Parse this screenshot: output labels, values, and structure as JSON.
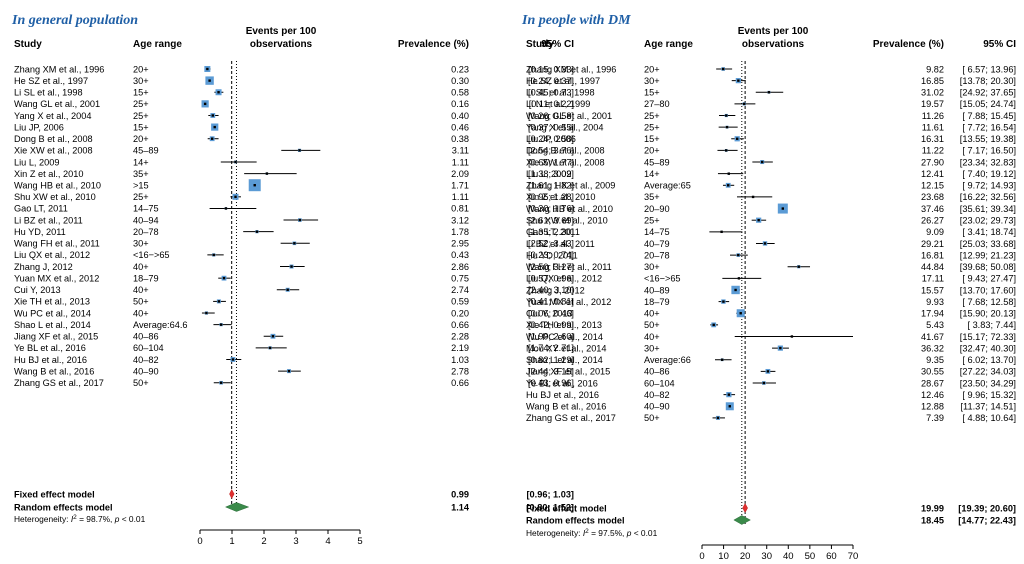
{
  "colors": {
    "title": "#1f5fa6",
    "box": "#5b9bd5",
    "diamond": "#3a8a4a",
    "fixed": "#e03030"
  },
  "chart_data": [
    {
      "type": "forest",
      "title": "In general population",
      "headers": {
        "study": "Study",
        "age": "Age range",
        "events1": "Events per 100",
        "events2": "observations",
        "prevalence": "Prevalence (%)",
        "ci": "95% CI"
      },
      "xlim": [
        0,
        5
      ],
      "ticks": [
        0,
        1,
        2,
        3,
        4,
        5
      ],
      "fixed_line": 0.99,
      "random_line": 1.14,
      "studies": [
        {
          "study": "Zhang XM et al., 1996",
          "age": "20+",
          "est": 0.23,
          "lo": 0.15,
          "hi": 0.33,
          "w": 3.0,
          "prev": "0.23",
          "ci": "[0.15; 0.33]"
        },
        {
          "study": "He SZ et al., 1997",
          "age": "30+",
          "est": 0.3,
          "lo": 0.24,
          "hi": 0.37,
          "w": 4.2,
          "prev": "0.30",
          "ci": "[0.24; 0.37]"
        },
        {
          "study": "Li SL et al., 1998",
          "age": "15+",
          "est": 0.58,
          "lo": 0.45,
          "hi": 0.73,
          "w": 3.0,
          "prev": "0.58",
          "ci": "[0.45; 0.73]"
        },
        {
          "study": "Wang GL et al., 2001",
          "age": "25+",
          "est": 0.16,
          "lo": 0.11,
          "hi": 0.22,
          "w": 3.6,
          "prev": "0.16",
          "ci": "[0.11; 0.22]"
        },
        {
          "study": "Yang X et al., 2004",
          "age": "25+",
          "est": 0.4,
          "lo": 0.26,
          "hi": 0.58,
          "w": 2.4,
          "prev": "0.40",
          "ci": "[0.26; 0.58]"
        },
        {
          "study": "Liu JP, 2006",
          "age": "15+",
          "est": 0.46,
          "lo": 0.37,
          "hi": 0.55,
          "w": 3.6,
          "prev": "0.46",
          "ci": "[0.37; 0.55]"
        },
        {
          "study": "Dong B et al., 2008",
          "age": "20+",
          "est": 0.38,
          "lo": 0.24,
          "hi": 0.58,
          "w": 2.4,
          "prev": "0.38",
          "ci": "[0.24; 0.58]"
        },
        {
          "study": "Xie XW et al., 2008",
          "age": "45–89",
          "est": 3.11,
          "lo": 2.54,
          "hi": 3.76,
          "w": 1.6,
          "prev": "3.11",
          "ci": "[2.54; 3.76]"
        },
        {
          "study": "Liu L, 2009",
          "age": "14+",
          "est": 1.11,
          "lo": 0.65,
          "hi": 1.77,
          "w": 1.4,
          "prev": "1.11",
          "ci": "[0.65; 1.77]"
        },
        {
          "study": "Xin Z et al., 2010",
          "age": "35+",
          "est": 2.09,
          "lo": 1.38,
          "hi": 3.02,
          "w": 1.2,
          "prev": "2.09",
          "ci": "[1.38; 3.02]"
        },
        {
          "study": "Wang HB et al., 2010",
          "age": ">15",
          "est": 1.71,
          "lo": 1.61,
          "hi": 1.82,
          "w": 6.0,
          "prev": "1.71",
          "ci": "[1.61; 1.82]"
        },
        {
          "study": "Shu XW et al., 2010",
          "age": "25+",
          "est": 1.11,
          "lo": 0.95,
          "hi": 1.28,
          "w": 3.0,
          "prev": "1.11",
          "ci": "[0.95; 1.28]"
        },
        {
          "study": "Gao LT, 2011",
          "age": "14–75",
          "est": 0.81,
          "lo": 0.3,
          "hi": 1.76,
          "w": 1.2,
          "prev": "0.81",
          "ci": "[0.30; 1.76]"
        },
        {
          "study": "Li BZ et al., 2011",
          "age": "40–94",
          "est": 3.12,
          "lo": 2.61,
          "hi": 3.69,
          "w": 1.8,
          "prev": "3.12",
          "ci": "[2.61; 3.69]"
        },
        {
          "study": "Hu YD, 2011",
          "age": "20–78",
          "est": 1.78,
          "lo": 1.35,
          "hi": 2.3,
          "w": 1.6,
          "prev": "1.78",
          "ci": "[1.35; 2.30]"
        },
        {
          "study": "Wang FH et al., 2011",
          "age": "30+",
          "est": 2.95,
          "lo": 2.52,
          "hi": 3.43,
          "w": 1.8,
          "prev": "2.95",
          "ci": "[2.52; 3.43]"
        },
        {
          "study": "Liu QX et al., 2012",
          "age": "<16−>65",
          "est": 0.43,
          "lo": 0.23,
          "hi": 0.74,
          "w": 1.6,
          "prev": "0.43",
          "ci": "[0.23; 0.74]"
        },
        {
          "study": "Zhang J, 2012",
          "age": "40+",
          "est": 2.86,
          "lo": 2.5,
          "hi": 3.27,
          "w": 2.0,
          "prev": "2.86",
          "ci": "[2.50; 3.27]"
        },
        {
          "study": "Yuan MX et al., 2012",
          "age": "18–79",
          "est": 0.75,
          "lo": 0.57,
          "hi": 0.96,
          "w": 2.4,
          "prev": "0.75",
          "ci": "[0.57; 0.96]"
        },
        {
          "study": "Cui Y, 2013",
          "age": "40+",
          "est": 2.74,
          "lo": 2.4,
          "hi": 3.1,
          "w": 2.0,
          "prev": "2.74",
          "ci": "[2.40; 3.10]"
        },
        {
          "study": "Xie TH et al., 2013",
          "age": "50+",
          "est": 0.59,
          "lo": 0.41,
          "hi": 0.81,
          "w": 2.0,
          "prev": "0.59",
          "ci": "[0.41; 0.81]"
        },
        {
          "study": "Wu PC et al., 2014",
          "age": "40+",
          "est": 0.2,
          "lo": 0.06,
          "hi": 0.46,
          "w": 1.6,
          "prev": "0.20",
          "ci": "[0.06; 0.46]"
        },
        {
          "study": "Shao L et al., 2014",
          "age": "Average:64.6",
          "est": 0.66,
          "lo": 0.42,
          "hi": 0.99,
          "w": 1.6,
          "prev": "0.66",
          "ci": "[0.42; 0.99]"
        },
        {
          "study": "Jiang XF et al., 2015",
          "age": "40–86",
          "est": 2.28,
          "lo": 1.99,
          "hi": 2.6,
          "w": 2.4,
          "prev": "2.28",
          "ci": "[1.99; 2.60]"
        },
        {
          "study": "Ye BL et al., 2016",
          "age": "60–104",
          "est": 2.19,
          "lo": 1.74,
          "hi": 2.71,
          "w": 1.6,
          "prev": "2.19",
          "ci": "[1.74; 2.71]"
        },
        {
          "study": "Hu BJ et al., 2016",
          "age": "40–82",
          "est": 1.03,
          "lo": 0.82,
          "hi": 1.29,
          "w": 2.4,
          "prev": "1.03",
          "ci": "[0.82; 1.29]"
        },
        {
          "study": "Wang B et al., 2016",
          "age": "40–90",
          "est": 2.78,
          "lo": 2.44,
          "hi": 3.15,
          "w": 2.0,
          "prev": "2.78",
          "ci": "[2.44; 3.15]"
        },
        {
          "study": "Zhang GS et al., 2017",
          "age": "50+",
          "est": 0.66,
          "lo": 0.43,
          "hi": 0.96,
          "w": 1.8,
          "prev": "0.66",
          "ci": "[0.43; 0.96]"
        }
      ],
      "fixed": {
        "label": "Fixed effect model",
        "est": 0.99,
        "lo": 0.96,
        "hi": 1.03,
        "prev": "0.99",
        "ci": "[0.96; 1.03]"
      },
      "random": {
        "label": "Random effects model",
        "est": 1.14,
        "lo": 0.8,
        "hi": 1.52,
        "prev": "1.14",
        "ci": "[0.80; 1.52]"
      },
      "heterogeneity": {
        "prefix": "Heterogeneity: ",
        "i2": "I",
        "sup": "2",
        "value": " = 98.7%, ",
        "p": "p",
        "pval": " < 0.01"
      }
    },
    {
      "type": "forest",
      "title": "In people with DM",
      "headers": {
        "study": "Study",
        "age": "Age range",
        "events1": "Events per 100",
        "events2": "observations",
        "prevalence": "Prevalence (%)",
        "ci": "95% CI"
      },
      "xlim": [
        0,
        70
      ],
      "ticks": [
        0,
        10,
        20,
        30,
        40,
        50,
        60,
        70
      ],
      "fixed_line": 19.99,
      "random_line": 18.45,
      "studies": [
        {
          "study": "Zhang XM et al., 1996",
          "age": "20+",
          "est": 9.82,
          "lo": 6.57,
          "hi": 13.96,
          "w": 1.8,
          "prev": "9.82",
          "ci": "[ 6.57; 13.96]"
        },
        {
          "study": "He SZ et al., 1997",
          "age": "30+",
          "est": 16.85,
          "lo": 13.78,
          "hi": 20.3,
          "w": 2.6,
          "prev": "16.85",
          "ci": "[13.78; 20.30]"
        },
        {
          "study": "Li SL et al., 1998",
          "age": "15+",
          "est": 31.02,
          "lo": 24.92,
          "hi": 37.65,
          "w": 1.4,
          "prev": "31.02",
          "ci": "[24.92; 37.65]"
        },
        {
          "study": "Li N et al., 1999",
          "age": "27–80",
          "est": 19.57,
          "lo": 15.05,
          "hi": 24.74,
          "w": 1.6,
          "prev": "19.57",
          "ci": "[15.05; 24.74]"
        },
        {
          "study": "Wang GL et al., 2001",
          "age": "25+",
          "est": 11.26,
          "lo": 7.88,
          "hi": 15.45,
          "w": 1.6,
          "prev": "11.26",
          "ci": "[ 7.88; 15.45]"
        },
        {
          "study": "Yang X et al., 2004",
          "age": "25+",
          "est": 11.61,
          "lo": 7.72,
          "hi": 16.54,
          "w": 1.4,
          "prev": "11.61",
          "ci": "[ 7.72; 16.54]"
        },
        {
          "study": "Liu JP, 2006",
          "age": "15+",
          "est": 16.31,
          "lo": 13.55,
          "hi": 19.38,
          "w": 2.6,
          "prev": "16.31",
          "ci": "[13.55; 19.38]"
        },
        {
          "study": "Dong B et al., 2008",
          "age": "20+",
          "est": 11.22,
          "lo": 7.17,
          "hi": 16.5,
          "w": 1.4,
          "prev": "11.22",
          "ci": "[ 7.17; 16.50]"
        },
        {
          "study": "Xie XW et al., 2008",
          "age": "45–89",
          "est": 27.9,
          "lo": 23.34,
          "hi": 32.83,
          "w": 2.0,
          "prev": "27.90",
          "ci": "[23.34; 32.83]"
        },
        {
          "study": "Liu L, 2009",
          "age": "14+",
          "est": 12.41,
          "lo": 7.4,
          "hi": 19.12,
          "w": 1.2,
          "prev": "12.41",
          "ci": "[ 7.40; 19.12]"
        },
        {
          "study": "Zhang HX et al., 2009",
          "age": "Average:65",
          "est": 12.15,
          "lo": 9.72,
          "hi": 14.93,
          "w": 2.4,
          "prev": "12.15",
          "ci": "[ 9.72; 14.93]"
        },
        {
          "study": "Xin Z et al., 2010",
          "age": "35+",
          "est": 23.68,
          "lo": 16.22,
          "hi": 32.56,
          "w": 1.0,
          "prev": "23.68",
          "ci": "[16.22; 32.56]"
        },
        {
          "study": "Wang HB et al., 2010",
          "age": "20–90",
          "est": 37.46,
          "lo": 35.61,
          "hi": 39.34,
          "w": 5.0,
          "prev": "37.46",
          "ci": "[35.61; 39.34]"
        },
        {
          "study": "Shu XW et al., 2010",
          "age": "25+",
          "est": 26.27,
          "lo": 23.02,
          "hi": 29.73,
          "w": 2.6,
          "prev": "26.27",
          "ci": "[23.02; 29.73]"
        },
        {
          "study": "Gao LT, 2011",
          "age": "14–75",
          "est": 9.09,
          "lo": 3.41,
          "hi": 18.74,
          "w": 1.0,
          "prev": "9.09",
          "ci": "[ 3.41; 18.74]"
        },
        {
          "study": "Li BZ et al., 2011",
          "age": "40–79",
          "est": 29.21,
          "lo": 25.03,
          "hi": 33.68,
          "w": 2.2,
          "prev": "29.21",
          "ci": "[25.03; 33.68]"
        },
        {
          "study": "Hu YD, 2011",
          "age": "20–78",
          "est": 16.81,
          "lo": 12.99,
          "hi": 21.23,
          "w": 1.8,
          "prev": "16.81",
          "ci": "[12.99; 21.23]"
        },
        {
          "study": "Wang FH et al., 2011",
          "age": "30+",
          "est": 44.84,
          "lo": 39.68,
          "hi": 50.08,
          "w": 1.6,
          "prev": "44.84",
          "ci": "[39.68; 50.08]"
        },
        {
          "study": "Liu QX et al., 2012",
          "age": "<16−>65",
          "est": 17.11,
          "lo": 9.43,
          "hi": 27.47,
          "w": 1.0,
          "prev": "17.11",
          "ci": "[ 9.43; 27.47]"
        },
        {
          "study": "Zhang J, 2012",
          "age": "40–89",
          "est": 15.57,
          "lo": 13.7,
          "hi": 17.6,
          "w": 4.2,
          "prev": "15.57",
          "ci": "[13.70; 17.60]"
        },
        {
          "study": "Yuan MX et al., 2012",
          "age": "18–79",
          "est": 9.93,
          "lo": 7.68,
          "hi": 12.58,
          "w": 2.2,
          "prev": "9.93",
          "ci": "[ 7.68; 12.58]"
        },
        {
          "study": "Cui Y, 2013",
          "age": "40+",
          "est": 17.94,
          "lo": 15.9,
          "hi": 20.13,
          "w": 4.0,
          "prev": "17.94",
          "ci": "[15.90; 20.13]"
        },
        {
          "study": "Xie TH et al., 2013",
          "age": "50+",
          "est": 5.43,
          "lo": 3.83,
          "hi": 7.44,
          "w": 2.4,
          "prev": "5.43",
          "ci": "[ 3.83; 7.44]"
        },
        {
          "study": "Wu PC et al., 2014",
          "age": "40+",
          "est": 41.67,
          "lo": 15.17,
          "hi": 72.33,
          "w": 0.6,
          "prev": "41.67",
          "ci": "[15.17; 72.33]"
        },
        {
          "study": "Mou XY et al., 2014",
          "age": "30+",
          "est": 36.32,
          "lo": 32.47,
          "hi": 40.3,
          "w": 2.6,
          "prev": "36.32",
          "ci": "[32.47; 40.30]"
        },
        {
          "study": "Shao L et al., 2014",
          "age": "Average:66",
          "est": 9.35,
          "lo": 6.02,
          "hi": 13.7,
          "w": 1.4,
          "prev": "9.35",
          "ci": "[ 6.02; 13.70]"
        },
        {
          "study": "Jiang XF et al., 2015",
          "age": "40–86",
          "est": 30.55,
          "lo": 27.22,
          "hi": 34.03,
          "w": 2.4,
          "prev": "30.55",
          "ci": "[27.22; 34.03]"
        },
        {
          "study": "Ye BL et al., 2016",
          "age": "60–104",
          "est": 28.67,
          "lo": 23.5,
          "hi": 34.29,
          "w": 1.8,
          "prev": "28.67",
          "ci": "[23.50; 34.29]"
        },
        {
          "study": "Hu BJ et al., 2016",
          "age": "40–82",
          "est": 12.46,
          "lo": 9.96,
          "hi": 15.32,
          "w": 2.6,
          "prev": "12.46",
          "ci": "[ 9.96; 15.32]"
        },
        {
          "study": "Wang B et al., 2016",
          "age": "40–90",
          "est": 12.88,
          "lo": 11.37,
          "hi": 14.51,
          "w": 4.0,
          "prev": "12.88",
          "ci": "[11.37; 14.51]"
        },
        {
          "study": "Zhang GS et al., 2017",
          "age": "50+",
          "est": 7.39,
          "lo": 4.88,
          "hi": 10.64,
          "w": 2.0,
          "prev": "7.39",
          "ci": "[ 4.88; 10.64]"
        }
      ],
      "fixed": {
        "label": "Fixed effect model",
        "est": 19.99,
        "lo": 19.39,
        "hi": 20.6,
        "prev": "19.99",
        "ci": "[19.39; 20.60]"
      },
      "random": {
        "label": "Random effects model",
        "est": 18.45,
        "lo": 14.77,
        "hi": 22.43,
        "prev": "18.45",
        "ci": "[14.77; 22.43]"
      },
      "heterogeneity": {
        "prefix": "Heterogeneity: ",
        "i2": "I",
        "sup": "2",
        "value": " = 97.5%, ",
        "p": "p",
        "pval": " < 0.01"
      }
    }
  ]
}
